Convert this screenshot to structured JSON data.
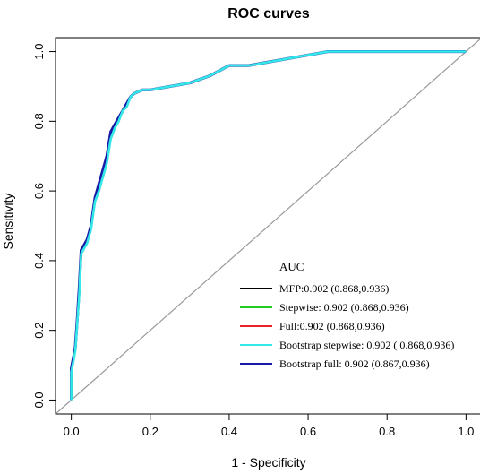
{
  "chart_data": {
    "type": "line",
    "title": "ROC curves",
    "xlabel": "1 - Specificity",
    "ylabel": "Sensitivity",
    "xlim": [
      -0.04,
      1.04
    ],
    "ylim": [
      -0.04,
      1.04
    ],
    "xticks": [
      "0.0",
      "0.2",
      "0.4",
      "0.6",
      "0.8",
      "1.0"
    ],
    "yticks": [
      "0.0",
      "0.2",
      "0.4",
      "0.6",
      "0.8",
      "1.0"
    ],
    "grid": false,
    "legend_title": "AUC",
    "legend_position": "bottom-right",
    "reference_line": {
      "x": [
        0,
        1
      ],
      "y": [
        0,
        1
      ],
      "color": "#9a9a9a"
    },
    "x": [
      0.0,
      0.0,
      0.005,
      0.01,
      0.015,
      0.02,
      0.025,
      0.03,
      0.04,
      0.05,
      0.06,
      0.07,
      0.08,
      0.09,
      0.1,
      0.11,
      0.12,
      0.13,
      0.14,
      0.15,
      0.16,
      0.18,
      0.2,
      0.25,
      0.3,
      0.35,
      0.4,
      0.45,
      0.5,
      0.55,
      0.6,
      0.65,
      0.7,
      0.8,
      0.9,
      1.0
    ],
    "series": [
      {
        "name": "MFP:0.902 (0.868,0.936)",
        "color": "#000000",
        "values": [
          0.0,
          0.08,
          0.11,
          0.14,
          0.22,
          0.3,
          0.42,
          0.43,
          0.45,
          0.49,
          0.57,
          0.6,
          0.64,
          0.68,
          0.75,
          0.78,
          0.8,
          0.83,
          0.84,
          0.87,
          0.88,
          0.89,
          0.89,
          0.9,
          0.91,
          0.93,
          0.96,
          0.96,
          0.97,
          0.98,
          0.99,
          1.0,
          1.0,
          1.0,
          1.0,
          1.0
        ]
      },
      {
        "name": "Stepwise: 0.902 (0.868,0.936)",
        "color": "#22cc22",
        "values": [
          0.0,
          0.08,
          0.11,
          0.14,
          0.22,
          0.3,
          0.42,
          0.43,
          0.45,
          0.49,
          0.57,
          0.6,
          0.64,
          0.68,
          0.75,
          0.78,
          0.8,
          0.83,
          0.84,
          0.87,
          0.88,
          0.89,
          0.89,
          0.9,
          0.91,
          0.93,
          0.96,
          0.96,
          0.97,
          0.98,
          0.99,
          1.0,
          1.0,
          1.0,
          1.0,
          1.0
        ]
      },
      {
        "name": "Full:0.902 (0.868,0.936)",
        "color": "#ee2222",
        "values": [
          0.0,
          0.08,
          0.11,
          0.14,
          0.22,
          0.3,
          0.42,
          0.43,
          0.45,
          0.49,
          0.57,
          0.6,
          0.64,
          0.68,
          0.75,
          0.78,
          0.8,
          0.83,
          0.84,
          0.87,
          0.88,
          0.89,
          0.89,
          0.9,
          0.91,
          0.93,
          0.96,
          0.96,
          0.97,
          0.98,
          0.99,
          1.0,
          1.0,
          1.0,
          1.0,
          1.0
        ]
      },
      {
        "name": "Bootstrap full: 0.902 (0.867,0.936)",
        "color": "#1a1aa8",
        "values": [
          0.0,
          0.09,
          0.12,
          0.15,
          0.23,
          0.32,
          0.43,
          0.44,
          0.46,
          0.5,
          0.58,
          0.62,
          0.66,
          0.7,
          0.77,
          0.79,
          0.81,
          0.83,
          0.85,
          0.87,
          0.88,
          0.89,
          0.89,
          0.9,
          0.91,
          0.93,
          0.96,
          0.96,
          0.97,
          0.98,
          0.99,
          1.0,
          1.0,
          1.0,
          1.0,
          1.0
        ]
      },
      {
        "name": "Bootstrap stepwise: 0.902 ( 0.868,0.936)",
        "color": "#33e8e8",
        "values": [
          0.0,
          0.08,
          0.11,
          0.14,
          0.22,
          0.3,
          0.42,
          0.43,
          0.45,
          0.49,
          0.57,
          0.6,
          0.64,
          0.68,
          0.75,
          0.78,
          0.8,
          0.83,
          0.84,
          0.87,
          0.88,
          0.89,
          0.89,
          0.9,
          0.91,
          0.93,
          0.96,
          0.96,
          0.97,
          0.98,
          0.99,
          1.0,
          1.0,
          1.0,
          1.0,
          1.0
        ]
      }
    ],
    "legend_order": [
      0,
      1,
      2,
      4,
      3
    ]
  }
}
